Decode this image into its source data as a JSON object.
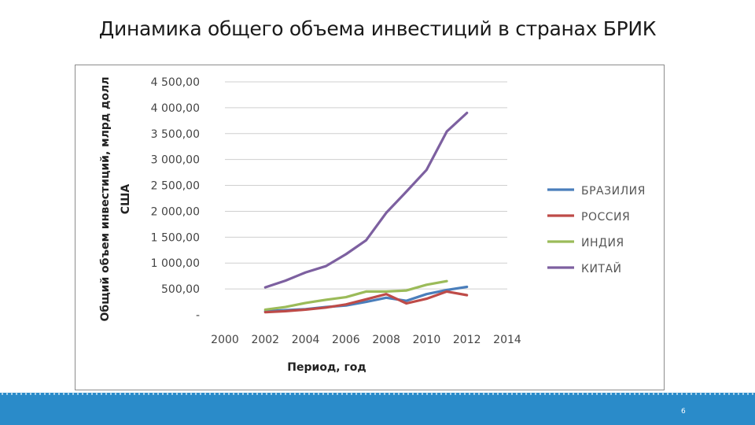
{
  "slide": {
    "title": "Динамика общего объема инвестиций в странах БРИК",
    "page_number": "6"
  },
  "colors": {
    "footer": "#2a8bc9",
    "grid": "#cfcfcf"
  },
  "chart_data": {
    "type": "line",
    "title": "",
    "xlabel": "Период, год",
    "ylabel": [
      "Общий объем инвестиций, млрд долл",
      "США"
    ],
    "xlim": [
      2000,
      2014
    ],
    "ylim": [
      0,
      4500
    ],
    "x_ticks": [
      "2000",
      "2002",
      "2004",
      "2006",
      "2008",
      "2010",
      "2012",
      "2014"
    ],
    "y_ticks": [
      "-",
      "500,00",
      "1 000,00",
      "1 500,00",
      "2 000,00",
      "2 500,00",
      "3 000,00",
      "3 500,00",
      "4 000,00",
      "4 500,00"
    ],
    "y_tick_values": [
      0,
      500,
      1000,
      1500,
      2000,
      2500,
      3000,
      3500,
      4000,
      4500
    ],
    "grid": true,
    "legend_position": "right",
    "series": [
      {
        "name": "БРАЗИЛИЯ",
        "color": "#4a7ebb",
        "x": [
          2002,
          2003,
          2004,
          2005,
          2006,
          2007,
          2008,
          2009,
          2010,
          2011,
          2012
        ],
        "y": [
          70,
          90,
          110,
          150,
          180,
          250,
          330,
          270,
          400,
          480,
          540
        ]
      },
      {
        "name": "РОССИЯ",
        "color": "#be4b48",
        "x": [
          2002,
          2003,
          2004,
          2005,
          2006,
          2007,
          2008,
          2009,
          2010,
          2011,
          2012
        ],
        "y": [
          50,
          70,
          100,
          140,
          200,
          300,
          400,
          220,
          310,
          450,
          380
        ]
      },
      {
        "name": "ИНДИЯ",
        "color": "#9bbb59",
        "x": [
          2002,
          2003,
          2004,
          2005,
          2006,
          2007,
          2008,
          2009,
          2010,
          2011
        ],
        "y": [
          100,
          150,
          230,
          290,
          340,
          450,
          450,
          470,
          580,
          650
        ]
      },
      {
        "name": "КИТАЙ",
        "color": "#7d60a0",
        "x": [
          2002,
          2003,
          2004,
          2005,
          2006,
          2007,
          2008,
          2009,
          2010,
          2011,
          2012
        ],
        "y": [
          530,
          660,
          820,
          940,
          1170,
          1440,
          1970,
          2380,
          2800,
          3540,
          3900
        ]
      }
    ]
  }
}
